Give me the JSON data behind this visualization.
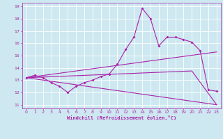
{
  "xlabel": "Windchill (Refroidissement éolien,°C)",
  "bg_color": "#cde8f0",
  "line_color": "#aa22aa",
  "grid_color": "#ffffff",
  "xlim": [
    -0.5,
    23.5
  ],
  "ylim": [
    10.7,
    19.3
  ],
  "xticks": [
    0,
    1,
    2,
    3,
    4,
    5,
    6,
    7,
    8,
    9,
    10,
    11,
    12,
    13,
    14,
    15,
    16,
    17,
    18,
    19,
    20,
    21,
    22,
    23
  ],
  "yticks": [
    11,
    12,
    13,
    14,
    15,
    16,
    17,
    18,
    19
  ],
  "series": {
    "line1": {
      "x": [
        0,
        1,
        2,
        3,
        4,
        5,
        6,
        7,
        8,
        9,
        10,
        11,
        12,
        13,
        14,
        15,
        16,
        17,
        18,
        19,
        20,
        21,
        22,
        23
      ],
      "y": [
        13.2,
        13.4,
        13.2,
        12.8,
        12.5,
        12.0,
        12.5,
        12.8,
        13.0,
        13.3,
        13.5,
        14.3,
        15.5,
        16.5,
        18.85,
        18.0,
        15.8,
        16.5,
        16.5,
        16.3,
        16.1,
        15.4,
        12.2,
        12.1
      ]
    },
    "line2_upper": {
      "x": [
        0,
        23
      ],
      "y": [
        13.2,
        15.3
      ]
    },
    "line3_lower": {
      "x": [
        0,
        23
      ],
      "y": [
        13.2,
        11.0
      ]
    },
    "line4_mid": {
      "x": [
        0,
        20,
        23
      ],
      "y": [
        13.2,
        13.75,
        11.0
      ]
    }
  }
}
